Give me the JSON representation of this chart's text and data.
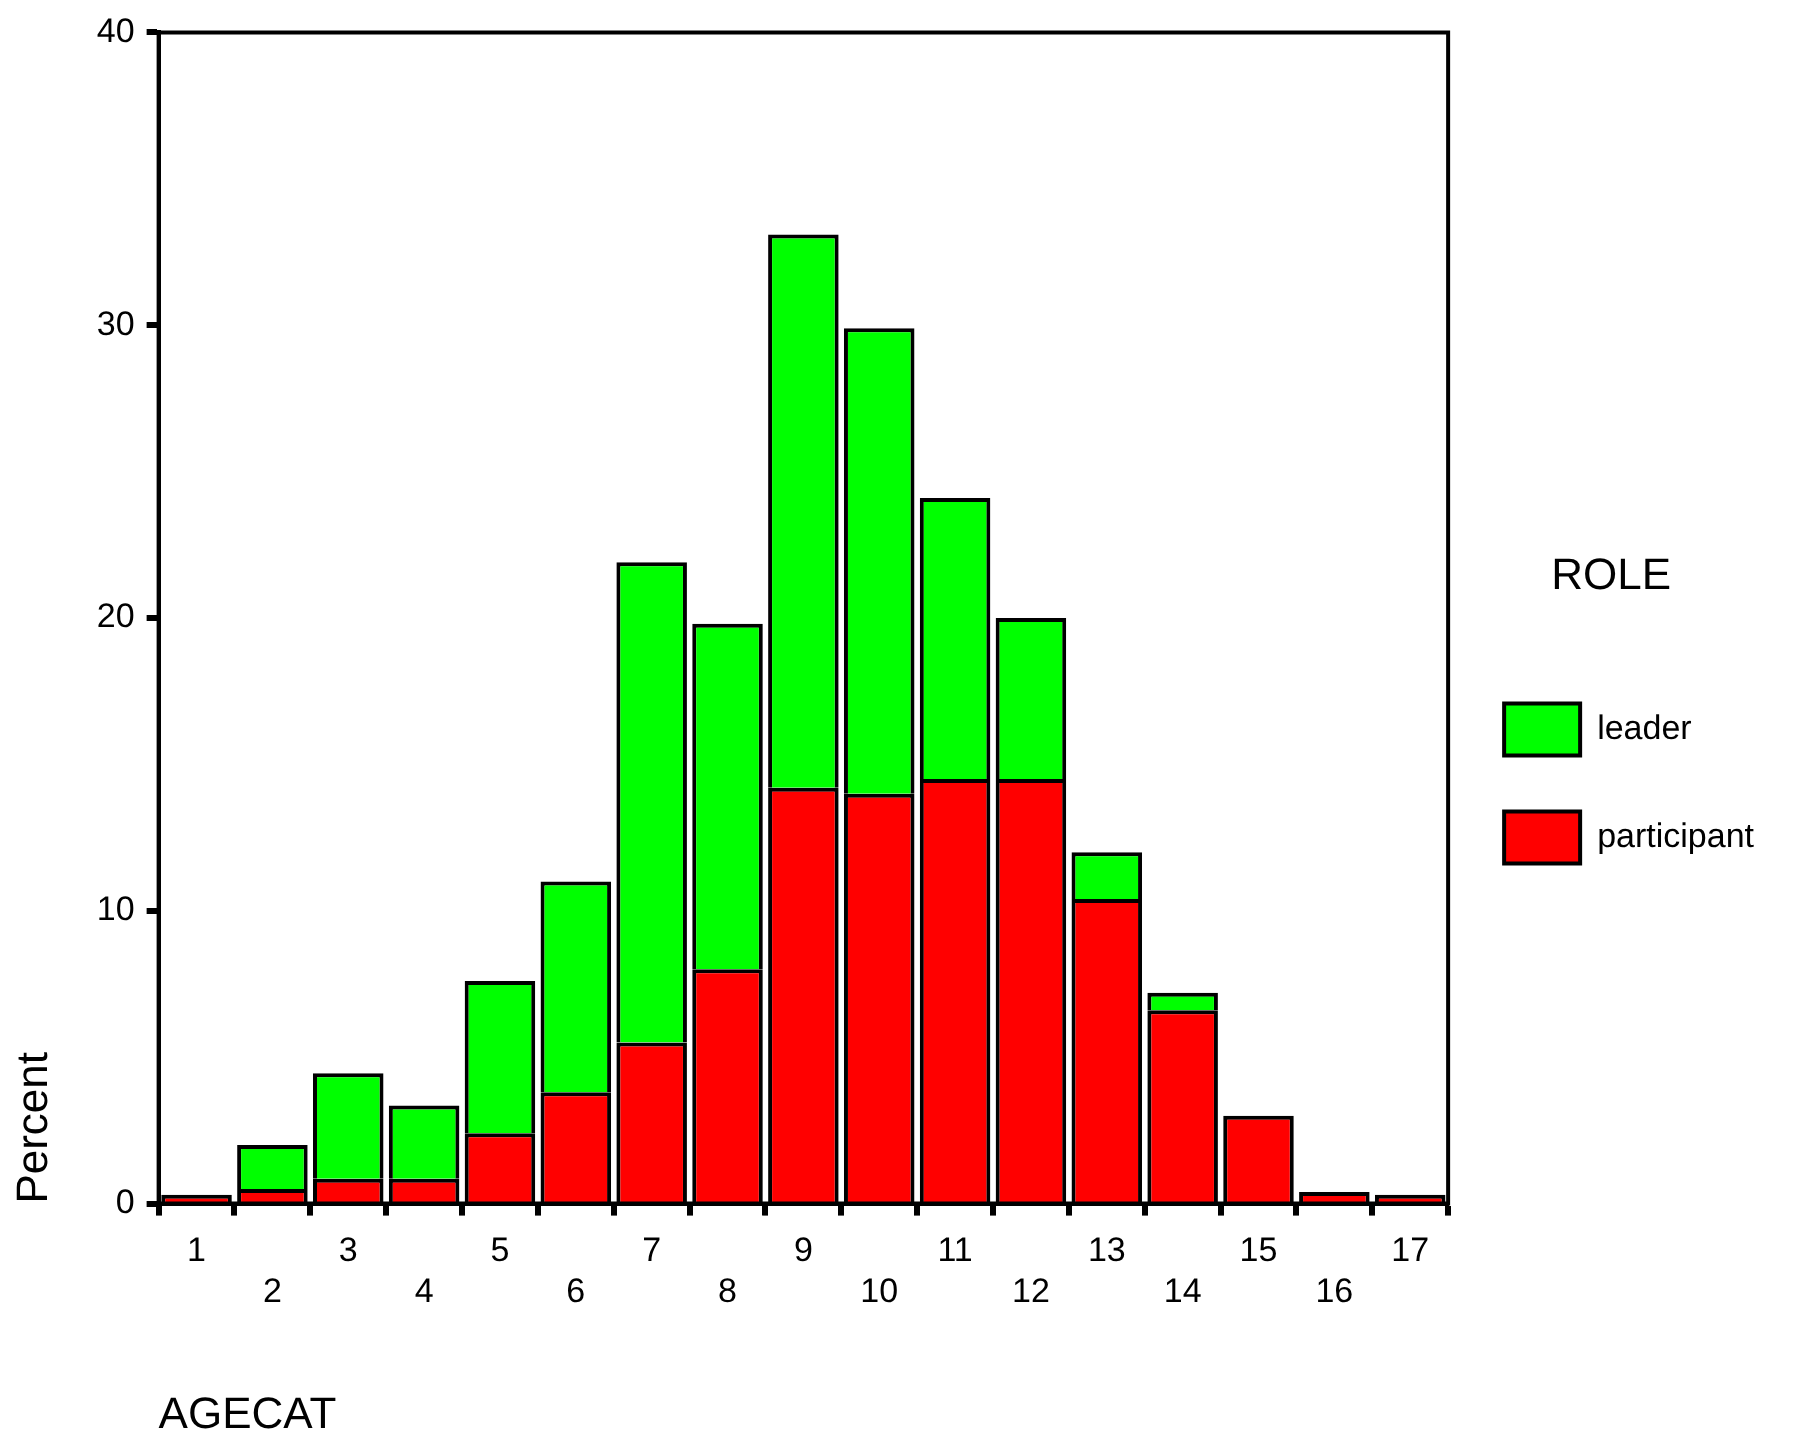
{
  "chart_data": {
    "type": "bar",
    "stacked": true,
    "xlabel": "AGECAT",
    "ylabel": "Percent",
    "legend_title": "ROLE",
    "legend": "right",
    "grid": false,
    "categories": [
      "1",
      "2",
      "3",
      "4",
      "5",
      "6",
      "7",
      "8",
      "9",
      "10",
      "11",
      "12",
      "13",
      "14",
      "15",
      "16",
      "17"
    ],
    "ylim": [
      0,
      40
    ],
    "yticks": [
      0,
      10,
      20,
      30,
      40
    ],
    "series": [
      {
        "name": "participant",
        "color": "#ff0000",
        "values": [
          0.3,
          0.5,
          0.85,
          0.85,
          2.4,
          3.8,
          5.5,
          8.0,
          14.2,
          14.0,
          14.5,
          14.5,
          10.4,
          6.6,
          3.0,
          0.4,
          0.3
        ]
      },
      {
        "name": "leader",
        "color": "#00ff00",
        "values": [
          0,
          1.5,
          3.6,
          2.5,
          5.2,
          7.2,
          16.4,
          11.8,
          18.9,
          15.9,
          9.6,
          5.5,
          1.6,
          0.6,
          0,
          0,
          0
        ]
      }
    ]
  }
}
